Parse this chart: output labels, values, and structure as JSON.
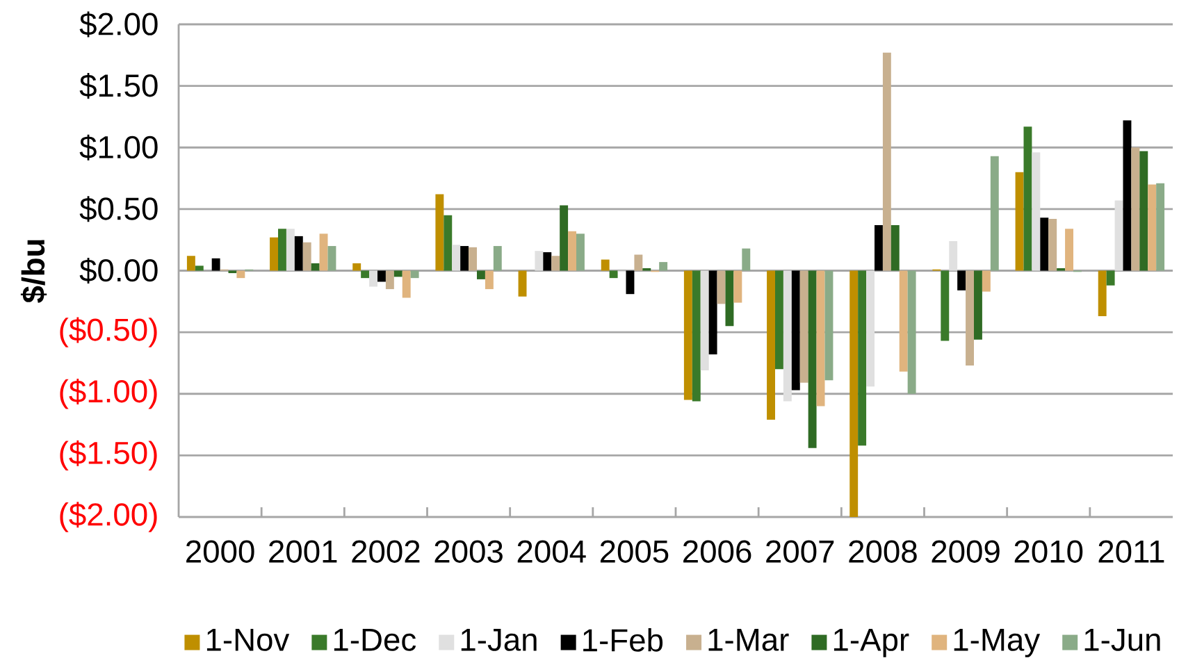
{
  "chart_data": {
    "type": "bar",
    "ylabel": "$/bu",
    "categories": [
      "2000",
      "2001",
      "2002",
      "2003",
      "2004",
      "2005",
      "2006",
      "2007",
      "2008",
      "2009",
      "2010",
      "2011"
    ],
    "series": [
      {
        "name": "1-Nov",
        "color": "#bf8f00",
        "values": [
          0.12,
          0.27,
          0.06,
          0.62,
          -0.21,
          0.09,
          -1.05,
          -1.21,
          -2.0,
          0.01,
          0.8,
          -0.37
        ]
      },
      {
        "name": "1-Dec",
        "color": "#3a7a2a",
        "values": [
          0.04,
          0.34,
          -0.06,
          0.45,
          0.0,
          -0.06,
          -1.06,
          -0.8,
          -1.42,
          -0.57,
          1.17,
          -0.12
        ]
      },
      {
        "name": "1-Jan",
        "color": "#e0e0e0",
        "values": [
          0.0,
          0.34,
          -0.13,
          0.21,
          0.16,
          -0.01,
          -0.81,
          -1.06,
          -0.94,
          0.24,
          0.96,
          0.57
        ]
      },
      {
        "name": "1-Feb",
        "color": "#000000",
        "values": [
          0.1,
          0.28,
          -0.09,
          0.2,
          0.15,
          -0.19,
          -0.68,
          -0.97,
          0.37,
          -0.16,
          0.43,
          1.22
        ]
      },
      {
        "name": "1-Mar",
        "color": "#c8b08f",
        "values": [
          0.01,
          0.23,
          -0.15,
          0.19,
          0.12,
          0.13,
          -0.27,
          -0.91,
          1.77,
          -0.77,
          0.42,
          1.0
        ]
      },
      {
        "name": "1-Apr",
        "color": "#2f6b24",
        "values": [
          -0.02,
          0.06,
          -0.05,
          -0.07,
          0.53,
          0.02,
          -0.45,
          -1.44,
          0.37,
          -0.56,
          0.02,
          0.97
        ]
      },
      {
        "name": "1-May",
        "color": "#e0b47e",
        "values": [
          -0.06,
          0.3,
          -0.22,
          -0.15,
          0.32,
          -0.01,
          -0.26,
          -1.1,
          -0.82,
          -0.17,
          0.34,
          0.7
        ]
      },
      {
        "name": "1-Jun",
        "color": "#8aab88",
        "values": [
          0.01,
          0.2,
          -0.06,
          0.2,
          0.3,
          0.07,
          0.18,
          -0.89,
          -1.0,
          0.93,
          -0.01,
          0.71
        ]
      }
    ],
    "ylim": [
      -2.0,
      2.0
    ],
    "yticks": [
      {
        "value": 2.0,
        "label": "$2.00"
      },
      {
        "value": 1.5,
        "label": "$1.50"
      },
      {
        "value": 1.0,
        "label": "$1.00"
      },
      {
        "value": 0.5,
        "label": "$0.50"
      },
      {
        "value": 0.0,
        "label": "$0.00"
      },
      {
        "value": -0.5,
        "label": "($0.50)"
      },
      {
        "value": -1.0,
        "label": "($1.00)"
      },
      {
        "value": -1.5,
        "label": "($1.50)"
      },
      {
        "value": -2.0,
        "label": "($2.00)"
      }
    ],
    "grid": "y",
    "legend": "bottom"
  }
}
